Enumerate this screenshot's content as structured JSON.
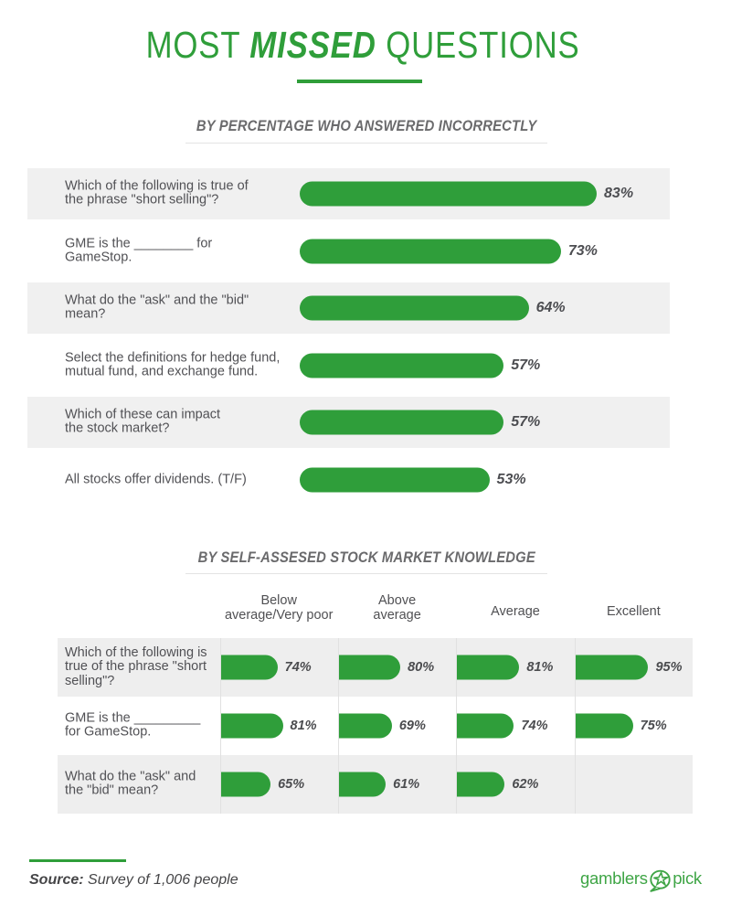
{
  "page_title": {
    "lead": "MOST ",
    "emphasis": "MISSED",
    "tail": " QUESTIONS"
  },
  "chart_data": [
    {
      "type": "bar",
      "orientation": "horizontal",
      "title": "BY PERCENTAGE WHO ANSWERED INCORRECTLY",
      "unit": "%",
      "xlim": [
        0,
        100
      ],
      "grid": false,
      "categories": [
        "Which of the following is true of\nthe phrase \"short selling\"?",
        "GME is the ________ for\nGameStop.",
        "What do the \"ask\" and the \"bid\"\nmean?",
        "Select the definitions for hedge fund,\nmutual fund, and exchange fund.",
        "Which of these can impact\nthe stock market?",
        "All stocks offer dividends. (T/F)"
      ],
      "values": [
        83,
        73,
        64,
        57,
        57,
        53
      ],
      "value_labels": [
        "83%",
        "73%",
        "64%",
        "57%",
        "57%",
        "53%"
      ]
    },
    {
      "type": "bar",
      "orientation": "horizontal",
      "title": "BY SELF-ASSESED STOCK MARKET KNOWLEDGE",
      "unit": "%",
      "xlim": [
        0,
        100
      ],
      "grid": false,
      "categories": [
        "Which of the following is\ntrue of the phrase \"short\nselling\"?",
        "GME is the _________\nfor GameStop.",
        "What do the \"ask\" and\nthe \"bid\" mean?"
      ],
      "column_headers": [
        "Below\naverage/Very poor",
        "Above\naverage",
        "Average",
        "Excellent"
      ],
      "series": [
        {
          "name": "Below average/Very poor",
          "values": [
            74,
            81,
            65
          ]
        },
        {
          "name": "Above average",
          "values": [
            80,
            69,
            61
          ]
        },
        {
          "name": "Average",
          "values": [
            81,
            74,
            62
          ]
        },
        {
          "name": "Excellent",
          "values": [
            95,
            75,
            null
          ]
        }
      ]
    }
  ],
  "footer": {
    "source_label": "Source:",
    "source_text": " Survey of 1,006 people",
    "logo": {
      "word_left": "gamblers",
      "word_right": "pick",
      "icon": "star-speech-bubble-icon"
    }
  },
  "colors": {
    "accent_green": "#2f9e3a",
    "stripe_gray_list": "#f0f0f0",
    "stripe_gray_table": "#eeeeee",
    "question_text": "#515155",
    "value_text": "#4b4c4f",
    "heading_text": "#6a6a6c",
    "divider": "#e1e1e1"
  }
}
